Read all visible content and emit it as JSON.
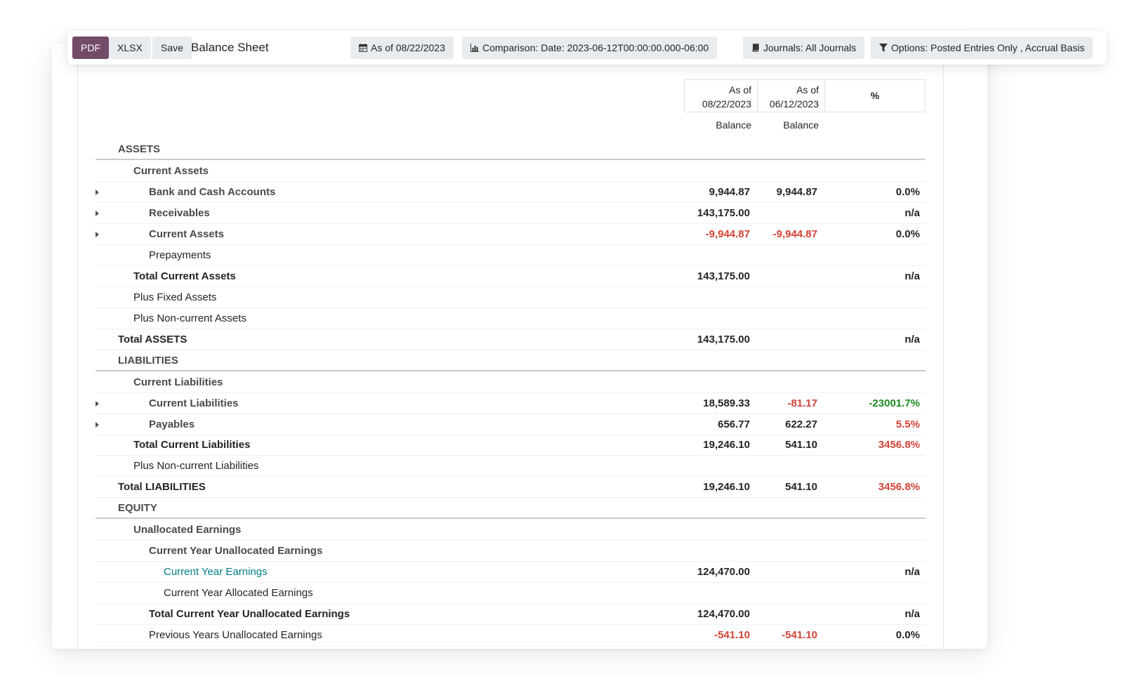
{
  "toolbar": {
    "pdf_label": "PDF",
    "xlsx_label": "XLSX",
    "save_label": "Save",
    "title": "Balance Sheet",
    "filters": {
      "date": "As of 08/22/2023",
      "comparison": "Comparison: Date: 2023-06-12T00:00:00.000-06:00",
      "journals": "Journals: All Journals",
      "options": "Options: Posted Entries Only , Accrual Basis"
    }
  },
  "columns": {
    "col1_line1": "As of",
    "col1_line2": "08/22/2023",
    "col2_line1": "As of",
    "col2_line2": "06/12/2023",
    "col3": "%",
    "sub1": "Balance",
    "sub2": "Balance"
  },
  "rows": [
    {
      "label": "ASSETS",
      "a": "",
      "b": "",
      "p": ""
    },
    {
      "label": "Current Assets",
      "a": "",
      "b": "",
      "p": ""
    },
    {
      "label": "Bank and Cash Accounts",
      "a": "9,944.87",
      "b": "9,944.87",
      "p": "0.0%"
    },
    {
      "label": "Receivables",
      "a": "143,175.00",
      "b": "",
      "p": "n/a"
    },
    {
      "label": "Current Assets",
      "a": "-9,944.87",
      "b": "-9,944.87",
      "p": "0.0%"
    },
    {
      "label": "Prepayments",
      "a": "",
      "b": "",
      "p": ""
    },
    {
      "label": "Total Current Assets",
      "a": "143,175.00",
      "b": "",
      "p": "n/a"
    },
    {
      "label": "Plus Fixed Assets",
      "a": "",
      "b": "",
      "p": ""
    },
    {
      "label": "Plus Non-current Assets",
      "a": "",
      "b": "",
      "p": ""
    },
    {
      "label": "Total ASSETS",
      "a": "143,175.00",
      "b": "",
      "p": "n/a"
    },
    {
      "label": "LIABILITIES",
      "a": "",
      "b": "",
      "p": ""
    },
    {
      "label": "Current Liabilities",
      "a": "",
      "b": "",
      "p": ""
    },
    {
      "label": "Current Liabilities",
      "a": "18,589.33",
      "b": "-81.17",
      "p": "-23001.7%"
    },
    {
      "label": "Payables",
      "a": "656.77",
      "b": "622.27",
      "p": "5.5%"
    },
    {
      "label": "Total Current Liabilities",
      "a": "19,246.10",
      "b": "541.10",
      "p": "3456.8%"
    },
    {
      "label": "Plus Non-current Liabilities",
      "a": "",
      "b": "",
      "p": ""
    },
    {
      "label": "Total LIABILITIES",
      "a": "19,246.10",
      "b": "541.10",
      "p": "3456.8%"
    },
    {
      "label": "EQUITY",
      "a": "",
      "b": "",
      "p": ""
    },
    {
      "label": "Unallocated Earnings",
      "a": "",
      "b": "",
      "p": ""
    },
    {
      "label": "Current Year Unallocated Earnings",
      "a": "",
      "b": "",
      "p": ""
    },
    {
      "label": "Current Year Earnings",
      "a": "124,470.00",
      "b": "",
      "p": "n/a"
    },
    {
      "label": "Current Year Allocated Earnings",
      "a": "",
      "b": "",
      "p": ""
    },
    {
      "label": "Total Current Year Unallocated Earnings",
      "a": "124,470.00",
      "b": "",
      "p": "n/a"
    },
    {
      "label": "Previous Years Unallocated Earnings",
      "a": "-541.10",
      "b": "-541.10",
      "p": "0.0%"
    }
  ],
  "colors": {
    "primary": "#714b67",
    "negative": "#d04437",
    "positive": "#1e8a1e",
    "link": "#017e84"
  }
}
